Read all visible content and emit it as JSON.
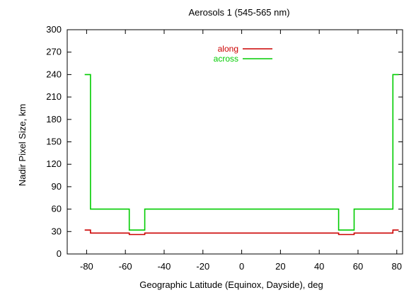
{
  "chart_data": {
    "type": "line",
    "title": "Aerosols 1 (545-565 nm)",
    "xlabel": "Geographic Latitude (Equinox, Dayside), deg",
    "ylabel": "Nadir Pixel Size, km",
    "xlim": [
      -90,
      83
    ],
    "ylim": [
      0,
      300
    ],
    "xticks": [
      -80,
      -60,
      -40,
      -20,
      0,
      20,
      40,
      60,
      80
    ],
    "yticks": [
      0,
      30,
      60,
      90,
      120,
      150,
      180,
      210,
      240,
      270,
      300
    ],
    "grid": false,
    "legend_position": "top-center",
    "series": [
      {
        "name": "along",
        "color": "#cc0000",
        "x": [
          -81,
          -78,
          -78,
          -58,
          -58,
          -50,
          -50,
          50,
          50,
          58,
          58,
          78,
          78,
          81
        ],
        "y": [
          32,
          32,
          28,
          28,
          26,
          26,
          28,
          28,
          26,
          26,
          28,
          28,
          32,
          32
        ]
      },
      {
        "name": "across",
        "color": "#00cc00",
        "x": [
          -81,
          -78,
          -78,
          -58,
          -58,
          -50,
          -50,
          50,
          50,
          58,
          58,
          78,
          78,
          81
        ],
        "y": [
          240,
          240,
          60,
          60,
          32,
          32,
          60,
          60,
          32,
          32,
          60,
          60,
          240,
          240
        ]
      }
    ]
  }
}
